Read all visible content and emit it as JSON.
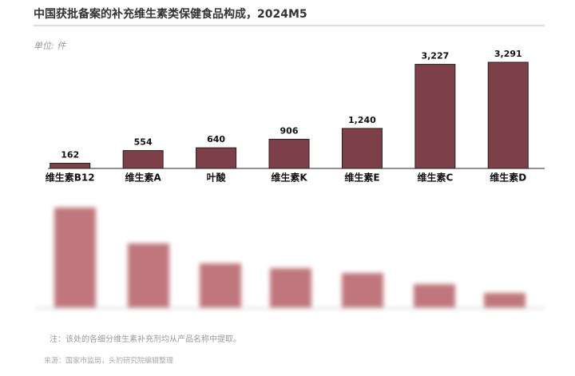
{
  "chart_data": {
    "type": "bar",
    "title": "中国获批备案的补充维生素类保健食品构成，2024M5",
    "unit_label": "单位: 件",
    "categories": [
      "维生素B12",
      "维生素A",
      "叶酸",
      "维生素K",
      "维生素E",
      "维生素C",
      "维生素D"
    ],
    "values": [
      162,
      554,
      640,
      906,
      1240,
      3227,
      3291
    ],
    "value_labels": [
      "162",
      "554",
      "640",
      "906",
      "1,240",
      "3,227",
      "3,291"
    ],
    "color": "#7d3f48"
  },
  "note": "注：该处的各细分维生素补充剂均从产品名称中提取。",
  "source": "来源：国家市监局，头豹研究院编辑整理"
}
